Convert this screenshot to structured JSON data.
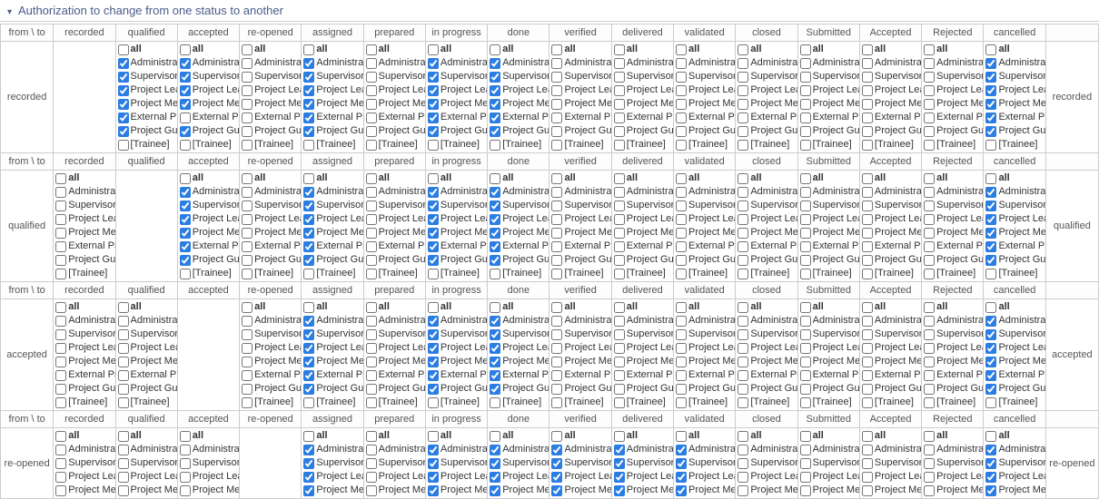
{
  "title": "Authorization to change from one status to another",
  "cornerLabel": "from \\ to",
  "statuses": [
    "recorded",
    "qualified",
    "accepted",
    "re-opened",
    "assigned",
    "prepared",
    "in progress",
    "done",
    "verified",
    "delivered",
    "validated",
    "closed",
    "Submitted",
    "Accepted",
    "Rejected",
    "cancelled"
  ],
  "roles": [
    {
      "key": "all",
      "label": "all",
      "bold": true,
      "bracket": false
    },
    {
      "key": "admin",
      "label": "Administrator",
      "bold": false,
      "bracket": false
    },
    {
      "key": "sup",
      "label": "Supervisor",
      "bold": false,
      "bracket": false
    },
    {
      "key": "lead",
      "label": "Project Leader",
      "bold": false,
      "bracket": false
    },
    {
      "key": "mgr",
      "label": "Project Member",
      "bold": false,
      "bracket": false
    },
    {
      "key": "ext",
      "label": "External Project",
      "bold": false,
      "bracket": false
    },
    {
      "key": "gue",
      "label": "Project Guest",
      "bold": false,
      "bracket": false
    },
    {
      "key": "trn",
      "label": "Trainee",
      "bold": false,
      "bracket": true
    }
  ],
  "rows": [
    {
      "from": "recorded",
      "partial": false,
      "cells": {
        "recorded": null,
        "qualified": {
          "all": false,
          "admin": true,
          "sup": true,
          "lead": true,
          "mgr": true,
          "ext": true,
          "gue": true,
          "trn": false
        },
        "accepted": {
          "all": false,
          "admin": true,
          "sup": true,
          "lead": true,
          "mgr": true,
          "ext": false,
          "gue": true,
          "trn": false
        },
        "re-opened": {
          "all": false,
          "admin": false,
          "sup": false,
          "lead": false,
          "mgr": false,
          "ext": false,
          "gue": false,
          "trn": false
        },
        "assigned": {
          "all": false,
          "admin": true,
          "sup": true,
          "lead": true,
          "mgr": true,
          "ext": true,
          "gue": true,
          "trn": false
        },
        "prepared": {
          "all": false,
          "admin": false,
          "sup": false,
          "lead": false,
          "mgr": false,
          "ext": false,
          "gue": false,
          "trn": false
        },
        "in progress": {
          "all": false,
          "admin": true,
          "sup": true,
          "lead": true,
          "mgr": true,
          "ext": true,
          "gue": true,
          "trn": false
        },
        "done": {
          "all": false,
          "admin": true,
          "sup": true,
          "lead": true,
          "mgr": true,
          "ext": true,
          "gue": true,
          "trn": false
        },
        "verified": {
          "all": false,
          "admin": false,
          "sup": false,
          "lead": false,
          "mgr": false,
          "ext": false,
          "gue": false,
          "trn": false
        },
        "delivered": {
          "all": false,
          "admin": false,
          "sup": false,
          "lead": false,
          "mgr": false,
          "ext": false,
          "gue": false,
          "trn": false
        },
        "validated": {
          "all": false,
          "admin": false,
          "sup": false,
          "lead": false,
          "mgr": false,
          "ext": false,
          "gue": false,
          "trn": false
        },
        "closed": {
          "all": false,
          "admin": false,
          "sup": false,
          "lead": false,
          "mgr": false,
          "ext": false,
          "gue": false,
          "trn": false
        },
        "Submitted": {
          "all": false,
          "admin": false,
          "sup": false,
          "lead": false,
          "mgr": false,
          "ext": false,
          "gue": false,
          "trn": false
        },
        "Accepted": {
          "all": false,
          "admin": false,
          "sup": false,
          "lead": false,
          "mgr": false,
          "ext": false,
          "gue": false,
          "trn": false
        },
        "Rejected": {
          "all": false,
          "admin": false,
          "sup": false,
          "lead": false,
          "mgr": false,
          "ext": false,
          "gue": false,
          "trn": false
        },
        "cancelled": {
          "all": false,
          "admin": true,
          "sup": true,
          "lead": true,
          "mgr": true,
          "ext": true,
          "gue": true,
          "trn": false
        }
      }
    },
    {
      "from": "qualified",
      "partial": false,
      "cells": {
        "recorded": {
          "all": false,
          "admin": false,
          "sup": false,
          "lead": false,
          "mgr": false,
          "ext": false,
          "gue": false,
          "trn": false
        },
        "qualified": null,
        "accepted": {
          "all": false,
          "admin": true,
          "sup": true,
          "lead": true,
          "mgr": true,
          "ext": true,
          "gue": true,
          "trn": false
        },
        "re-opened": {
          "all": false,
          "admin": false,
          "sup": false,
          "lead": false,
          "mgr": false,
          "ext": false,
          "gue": false,
          "trn": false
        },
        "assigned": {
          "all": false,
          "admin": true,
          "sup": true,
          "lead": true,
          "mgr": true,
          "ext": true,
          "gue": true,
          "trn": false
        },
        "prepared": {
          "all": false,
          "admin": false,
          "sup": false,
          "lead": false,
          "mgr": false,
          "ext": false,
          "gue": false,
          "trn": false
        },
        "in progress": {
          "all": false,
          "admin": true,
          "sup": true,
          "lead": true,
          "mgr": true,
          "ext": true,
          "gue": true,
          "trn": false
        },
        "done": {
          "all": false,
          "admin": true,
          "sup": true,
          "lead": true,
          "mgr": true,
          "ext": true,
          "gue": true,
          "trn": false
        },
        "verified": {
          "all": false,
          "admin": false,
          "sup": false,
          "lead": false,
          "mgr": false,
          "ext": false,
          "gue": false,
          "trn": false
        },
        "delivered": {
          "all": false,
          "admin": false,
          "sup": false,
          "lead": false,
          "mgr": false,
          "ext": false,
          "gue": false,
          "trn": false
        },
        "validated": {
          "all": false,
          "admin": false,
          "sup": false,
          "lead": false,
          "mgr": false,
          "ext": false,
          "gue": false,
          "trn": false
        },
        "closed": {
          "all": false,
          "admin": false,
          "sup": false,
          "lead": false,
          "mgr": false,
          "ext": false,
          "gue": false,
          "trn": false
        },
        "Submitted": {
          "all": false,
          "admin": false,
          "sup": false,
          "lead": false,
          "mgr": false,
          "ext": false,
          "gue": false,
          "trn": false
        },
        "Accepted": {
          "all": false,
          "admin": false,
          "sup": false,
          "lead": false,
          "mgr": false,
          "ext": false,
          "gue": false,
          "trn": false
        },
        "Rejected": {
          "all": false,
          "admin": false,
          "sup": false,
          "lead": false,
          "mgr": false,
          "ext": false,
          "gue": false,
          "trn": false
        },
        "cancelled": {
          "all": false,
          "admin": true,
          "sup": true,
          "lead": true,
          "mgr": true,
          "ext": true,
          "gue": true,
          "trn": false
        }
      }
    },
    {
      "from": "accepted",
      "partial": false,
      "cells": {
        "recorded": {
          "all": false,
          "admin": false,
          "sup": false,
          "lead": false,
          "mgr": false,
          "ext": false,
          "gue": false,
          "trn": false
        },
        "qualified": {
          "all": false,
          "admin": false,
          "sup": false,
          "lead": false,
          "mgr": false,
          "ext": false,
          "gue": false,
          "trn": false
        },
        "accepted": null,
        "re-opened": {
          "all": false,
          "admin": false,
          "sup": false,
          "lead": false,
          "mgr": false,
          "ext": false,
          "gue": false,
          "trn": false
        },
        "assigned": {
          "all": false,
          "admin": true,
          "sup": true,
          "lead": true,
          "mgr": true,
          "ext": true,
          "gue": true,
          "trn": false
        },
        "prepared": {
          "all": false,
          "admin": false,
          "sup": false,
          "lead": false,
          "mgr": false,
          "ext": false,
          "gue": false,
          "trn": false
        },
        "in progress": {
          "all": false,
          "admin": true,
          "sup": true,
          "lead": true,
          "mgr": true,
          "ext": true,
          "gue": true,
          "trn": false
        },
        "done": {
          "all": false,
          "admin": true,
          "sup": true,
          "lead": true,
          "mgr": true,
          "ext": true,
          "gue": true,
          "trn": false
        },
        "verified": {
          "all": false,
          "admin": false,
          "sup": false,
          "lead": false,
          "mgr": false,
          "ext": false,
          "gue": false,
          "trn": false
        },
        "delivered": {
          "all": false,
          "admin": false,
          "sup": false,
          "lead": false,
          "mgr": false,
          "ext": false,
          "gue": false,
          "trn": false
        },
        "validated": {
          "all": false,
          "admin": false,
          "sup": false,
          "lead": false,
          "mgr": false,
          "ext": false,
          "gue": false,
          "trn": false
        },
        "closed": {
          "all": false,
          "admin": false,
          "sup": false,
          "lead": false,
          "mgr": false,
          "ext": false,
          "gue": false,
          "trn": false
        },
        "Submitted": {
          "all": false,
          "admin": false,
          "sup": false,
          "lead": false,
          "mgr": false,
          "ext": false,
          "gue": false,
          "trn": false
        },
        "Accepted": {
          "all": false,
          "admin": false,
          "sup": false,
          "lead": false,
          "mgr": false,
          "ext": false,
          "gue": false,
          "trn": false
        },
        "Rejected": {
          "all": false,
          "admin": false,
          "sup": false,
          "lead": false,
          "mgr": false,
          "ext": false,
          "gue": false,
          "trn": false
        },
        "cancelled": {
          "all": false,
          "admin": true,
          "sup": true,
          "lead": true,
          "mgr": true,
          "ext": true,
          "gue": true,
          "trn": false
        }
      }
    },
    {
      "from": "re-opened",
      "partial": true,
      "cells": {
        "recorded": {
          "all": false,
          "admin": false,
          "sup": false,
          "lead": false,
          "mgr": false
        },
        "qualified": {
          "all": false,
          "admin": false,
          "sup": false,
          "lead": false,
          "mgr": false
        },
        "accepted": {
          "all": false,
          "admin": false,
          "sup": false,
          "lead": false,
          "mgr": false
        },
        "re-opened": null,
        "assigned": {
          "all": false,
          "admin": true,
          "sup": true,
          "lead": true,
          "mgr": true
        },
        "prepared": {
          "all": false,
          "admin": false,
          "sup": false,
          "lead": false,
          "mgr": false
        },
        "in progress": {
          "all": false,
          "admin": true,
          "sup": true,
          "lead": true,
          "mgr": true
        },
        "done": {
          "all": false,
          "admin": true,
          "sup": true,
          "lead": true,
          "mgr": true
        },
        "verified": {
          "all": false,
          "admin": true,
          "sup": true,
          "lead": true,
          "mgr": true
        },
        "delivered": {
          "all": false,
          "admin": true,
          "sup": true,
          "lead": true,
          "mgr": true
        },
        "validated": {
          "all": false,
          "admin": true,
          "sup": true,
          "lead": true,
          "mgr": true
        },
        "closed": {
          "all": false,
          "admin": false,
          "sup": false,
          "lead": false,
          "mgr": false
        },
        "Submitted": {
          "all": false,
          "admin": false,
          "sup": false,
          "lead": false,
          "mgr": false
        },
        "Accepted": {
          "all": false,
          "admin": false,
          "sup": false,
          "lead": false,
          "mgr": false
        },
        "Rejected": {
          "all": false,
          "admin": false,
          "sup": false,
          "lead": false,
          "mgr": false
        },
        "cancelled": {
          "all": false,
          "admin": true,
          "sup": true,
          "lead": true,
          "mgr": true
        }
      }
    }
  ]
}
